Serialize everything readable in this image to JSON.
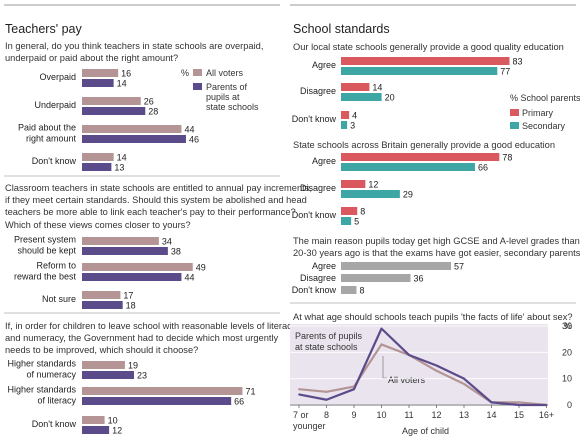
{
  "colors": {
    "all_voters": "#B49494",
    "parents": "#5B4B8A",
    "primary": "#D9595F",
    "secondary": "#3FA6A6",
    "grey_bar": "#A6A6A6",
    "rule": "#999999",
    "plot_bg": "#E9E4EE"
  },
  "left": {
    "title": "Teachers' pay",
    "legend": {
      "unit": "%",
      "all_voters": "All voters",
      "parents": "Parents of pupils at state schools"
    },
    "q1": {
      "question": "In general, do you think teachers in state schools are overpaid, underpaid or paid about the right amount?",
      "categories": [
        "Overpaid",
        "Underpaid",
        "Paid about the right amount",
        "Don't know"
      ],
      "all_voters": [
        16,
        26,
        44,
        14
      ],
      "parents": [
        14,
        28,
        46,
        13
      ]
    },
    "q2": {
      "question": "Classroom teachers in state schools are entitled to annual pay increments, if they meet certain standards. Should this system be abolished and head teachers be more able to link each teacher's pay to their performance? Which of these views comes closer to yours?",
      "categories": [
        "Present system should be kept",
        "Reform to reward the best",
        "Not sure"
      ],
      "all_voters": [
        34,
        49,
        17
      ],
      "parents": [
        38,
        44,
        18
      ]
    },
    "q3": {
      "question": "If, in order for children to leave school with reasonable levels of literacy and numeracy, the Government had to decide which most urgently needs to be improved, which should it choose?",
      "categories": [
        "Higher standards of numeracy",
        "Higher standards of literacy",
        "Don't know"
      ],
      "all_voters": [
        19,
        71,
        10
      ],
      "parents": [
        23,
        66,
        12
      ]
    }
  },
  "right": {
    "title": "School standards",
    "legend": {
      "title": "% School parents",
      "primary": "Primary",
      "secondary": "Secondary"
    },
    "q4": {
      "question": "Our local state schools generally provide a good quality education",
      "categories": [
        "Agree",
        "Disagree",
        "Don't know"
      ],
      "primary": [
        83,
        14,
        4
      ],
      "secondary": [
        77,
        20,
        3
      ]
    },
    "q5": {
      "question": "State schools across Britain generally provide a good education",
      "categories": [
        "Agree",
        "Disagree",
        "Don't know"
      ],
      "primary": [
        78,
        12,
        8
      ],
      "secondary": [
        66,
        29,
        5
      ]
    },
    "q6": {
      "question": "The main reason pupils today get high GCSE and A-level grades than pupils 20-30 years ago is that the exams have got easier, secondary parents %",
      "categories": [
        "Agree",
        "Disagree",
        "Don't know"
      ],
      "values": [
        57,
        36,
        8
      ]
    },
    "q7": {
      "question": "At what age should schools teach pupils 'the facts of life' about sex?",
      "label_parents": "Parents of pupils at state schools",
      "label_all": "All voters",
      "unit": "%",
      "xlabel": "Age of child"
    }
  },
  "chart_data": [
    {
      "type": "bar",
      "title": "Teachers' pay",
      "categories": [
        "Overpaid",
        "Underpaid",
        "Paid about the right amount",
        "Don't know"
      ],
      "series": [
        {
          "name": "All voters",
          "values": [
            16,
            26,
            44,
            14
          ]
        },
        {
          "name": "Parents of pupils at state schools",
          "values": [
            14,
            28,
            46,
            13
          ]
        }
      ]
    },
    {
      "type": "bar",
      "categories": [
        "Present system should be kept",
        "Reform to reward the best",
        "Not sure"
      ],
      "series": [
        {
          "name": "All voters",
          "values": [
            34,
            49,
            17
          ]
        },
        {
          "name": "Parents of pupils at state schools",
          "values": [
            38,
            44,
            18
          ]
        }
      ]
    },
    {
      "type": "bar",
      "categories": [
        "Higher standards of numeracy",
        "Higher standards of literacy",
        "Don't know"
      ],
      "series": [
        {
          "name": "All voters",
          "values": [
            19,
            71,
            10
          ]
        },
        {
          "name": "Parents of pupils at state schools",
          "values": [
            23,
            66,
            12
          ]
        }
      ]
    },
    {
      "type": "bar",
      "title": "School standards",
      "categories": [
        "Agree",
        "Disagree",
        "Don't know"
      ],
      "series": [
        {
          "name": "Primary",
          "values": [
            83,
            14,
            4
          ]
        },
        {
          "name": "Secondary",
          "values": [
            77,
            20,
            3
          ]
        }
      ]
    },
    {
      "type": "bar",
      "categories": [
        "Agree",
        "Disagree",
        "Don't know"
      ],
      "series": [
        {
          "name": "Primary",
          "values": [
            78,
            12,
            8
          ]
        },
        {
          "name": "Secondary",
          "values": [
            66,
            29,
            5
          ]
        }
      ]
    },
    {
      "type": "bar",
      "categories": [
        "Agree",
        "Disagree",
        "Don't know"
      ],
      "series": [
        {
          "values": [
            57,
            36,
            8
          ]
        }
      ]
    },
    {
      "type": "line",
      "title": "At what age should schools teach pupils 'the facts of life' about sex?",
      "xlabel": "Age of child",
      "ylabel": "%",
      "categories": [
        "7 or younger",
        "8",
        "9",
        "10",
        "11",
        "12",
        "13",
        "14",
        "15",
        "16+"
      ],
      "ylim": [
        0,
        30
      ],
      "yticks": [
        0,
        10,
        20,
        30
      ],
      "series": [
        {
          "name": "Parents of pupils at state schools",
          "values": [
            4,
            2,
            6,
            29,
            19,
            15,
            10,
            1,
            0,
            0
          ]
        },
        {
          "name": "All voters",
          "values": [
            6,
            5,
            7,
            23,
            19,
            13,
            8,
            1,
            1,
            0
          ]
        }
      ]
    }
  ]
}
